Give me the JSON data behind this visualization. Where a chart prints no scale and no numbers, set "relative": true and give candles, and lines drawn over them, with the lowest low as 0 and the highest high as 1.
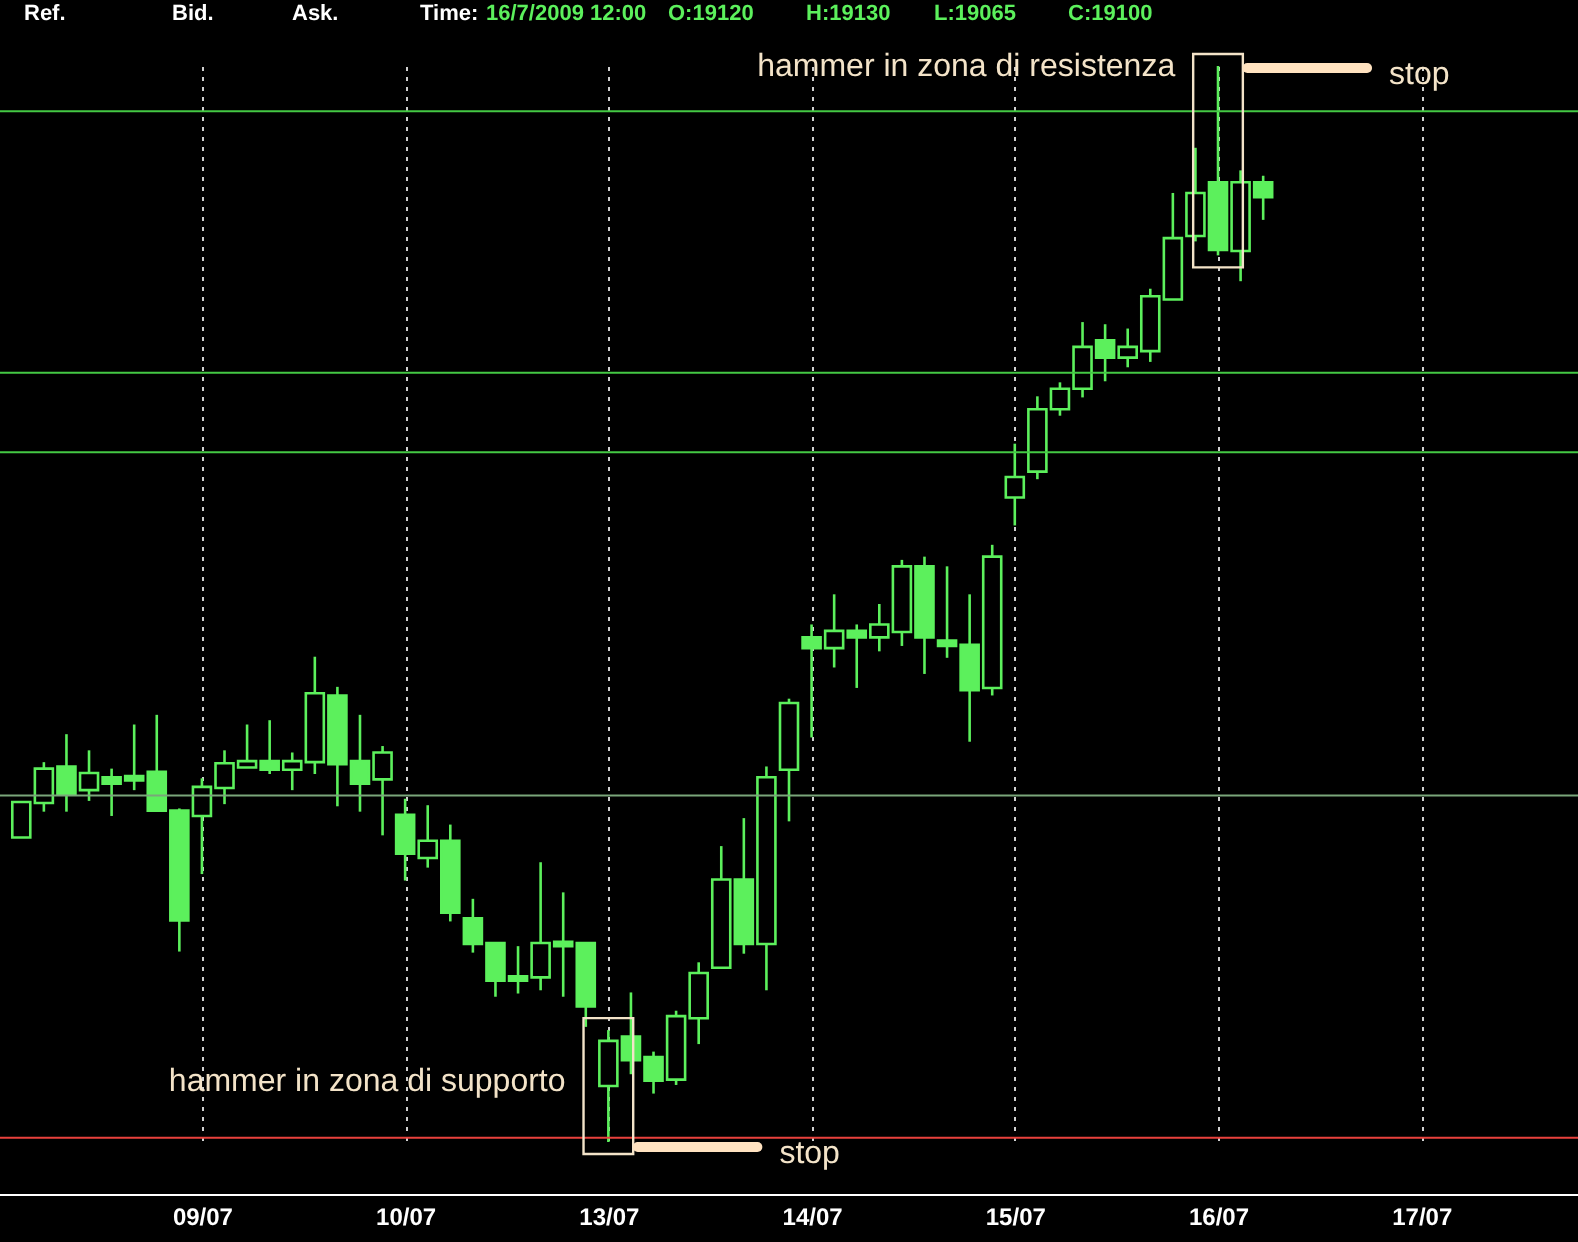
{
  "chart_data": {
    "type": "candlestick",
    "relative": true,
    "color": "#5cf05c",
    "grid": "x",
    "categories": [
      null,
      null,
      null,
      null,
      null,
      null,
      null,
      null,
      "09/07",
      null,
      null,
      null,
      null,
      null,
      null,
      null,
      null,
      "10/07",
      null,
      null,
      null,
      null,
      null,
      null,
      null,
      null,
      "13/07",
      null,
      null,
      null,
      null,
      null,
      null,
      null,
      null,
      "14/07",
      null,
      null,
      null,
      null,
      null,
      null,
      null,
      null,
      "15/07",
      null,
      null,
      null,
      null,
      null,
      null,
      null,
      null,
      "16/07",
      null,
      null,
      null,
      null,
      null,
      null,
      null,
      null,
      "17/07",
      null,
      null,
      null,
      null,
      null,
      null
    ],
    "ohlc": [
      [
        0.283,
        0.316,
        0.283,
        0.316
      ],
      [
        0.315,
        0.353,
        0.307,
        0.347
      ],
      [
        0.349,
        0.379,
        0.307,
        0.323
      ],
      [
        0.327,
        0.364,
        0.317,
        0.343
      ],
      [
        0.339,
        0.347,
        0.303,
        0.333
      ],
      [
        0.34,
        0.388,
        0.327,
        0.336
      ],
      [
        0.344,
        0.397,
        0.308,
        0.308
      ],
      [
        0.308,
        0.31,
        0.177,
        0.206
      ],
      [
        0.303,
        0.338,
        0.249,
        0.33
      ],
      [
        0.329,
        0.364,
        0.314,
        0.352
      ],
      [
        0.348,
        0.388,
        0.348,
        0.354
      ],
      [
        0.354,
        0.392,
        0.342,
        0.346
      ],
      [
        0.346,
        0.362,
        0.327,
        0.354
      ],
      [
        0.353,
        0.451,
        0.342,
        0.417
      ],
      [
        0.415,
        0.423,
        0.312,
        0.351
      ],
      [
        0.354,
        0.397,
        0.307,
        0.333
      ],
      [
        0.337,
        0.368,
        0.285,
        0.362
      ],
      [
        0.304,
        0.319,
        0.243,
        0.268
      ],
      [
        0.264,
        0.313,
        0.255,
        0.28
      ],
      [
        0.28,
        0.295,
        0.205,
        0.213
      ],
      [
        0.208,
        0.226,
        0.176,
        0.184
      ],
      [
        0.185,
        0.185,
        0.135,
        0.15
      ],
      [
        0.154,
        0.182,
        0.138,
        0.15
      ],
      [
        0.153,
        0.26,
        0.141,
        0.185
      ],
      [
        0.186,
        0.232,
        0.135,
        0.182
      ],
      [
        0.185,
        0.185,
        0.107,
        0.126
      ],
      [
        0.052,
        0.104,
        0,
        0.094
      ],
      [
        0.098,
        0.139,
        0.063,
        0.076
      ],
      [
        0.079,
        0.084,
        0.045,
        0.057
      ],
      [
        0.058,
        0.122,
        0.053,
        0.117
      ],
      [
        0.115,
        0.167,
        0.091,
        0.157
      ],
      [
        0.162,
        0.275,
        0.162,
        0.244
      ],
      [
        0.244,
        0.301,
        0.175,
        0.184
      ],
      [
        0.184,
        0.349,
        0.141,
        0.339
      ],
      [
        0.346,
        0.412,
        0.298,
        0.408
      ],
      [
        0.469,
        0.481,
        0.376,
        0.459
      ],
      [
        0.459,
        0.509,
        0.441,
        0.475
      ],
      [
        0.475,
        0.481,
        0.422,
        0.469
      ],
      [
        0.469,
        0.5,
        0.456,
        0.481
      ],
      [
        0.474,
        0.541,
        0.461,
        0.535
      ],
      [
        0.535,
        0.544,
        0.435,
        0.469
      ],
      [
        0.466,
        0.535,
        0.45,
        0.461
      ],
      [
        0.462,
        0.509,
        0.372,
        0.42
      ],
      [
        0.422,
        0.555,
        0.415,
        0.544
      ],
      [
        0.599,
        0.649,
        0.573,
        0.618
      ],
      [
        0.623,
        0.693,
        0.616,
        0.681
      ],
      [
        0.681,
        0.706,
        0.675,
        0.7
      ],
      [
        0.7,
        0.762,
        0.692,
        0.739
      ],
      [
        0.745,
        0.76,
        0.707,
        0.729
      ],
      [
        0.729,
        0.756,
        0.72,
        0.739
      ],
      [
        0.735,
        0.793,
        0.725,
        0.786
      ],
      [
        0.783,
        0.882,
        0.783,
        0.84
      ],
      [
        0.842,
        0.924,
        0.837,
        0.882
      ],
      [
        0.892,
        1,
        0.824,
        0.829
      ],
      [
        0.828,
        0.903,
        0.8,
        0.892
      ],
      [
        0.892,
        0.898,
        0.857,
        0.878
      ],
      null,
      null,
      null,
      null,
      null,
      null,
      null,
      null,
      null,
      null,
      null,
      null,
      null
    ],
    "ref_lines": [
      {
        "axis": "y",
        "value": 0.958,
        "color": "#44c944"
      },
      {
        "axis": "y",
        "value": 0.715,
        "color": "#44c944"
      },
      {
        "axis": "y",
        "value": 0.641,
        "color": "#44c944"
      },
      {
        "axis": "y",
        "value": 0.322,
        "color": "#7aa67a"
      },
      {
        "axis": "y",
        "value": 0.004,
        "color": "#e8413c"
      }
    ],
    "annotations": [
      {
        "text": "hammer in zona di supporto",
        "x": "13/07",
        "y": 0.057
      },
      "stop",
      {
        "text": "hammer in zona di resistenza",
        "x": "16/07",
        "y": 1
      },
      "stop",
      "Ref.",
      "Bid.",
      "Ask.",
      "Time:",
      "16/7/2009 12:00",
      "O:19120",
      "H:19130",
      "L:19065",
      "C:19100"
    ]
  }
}
